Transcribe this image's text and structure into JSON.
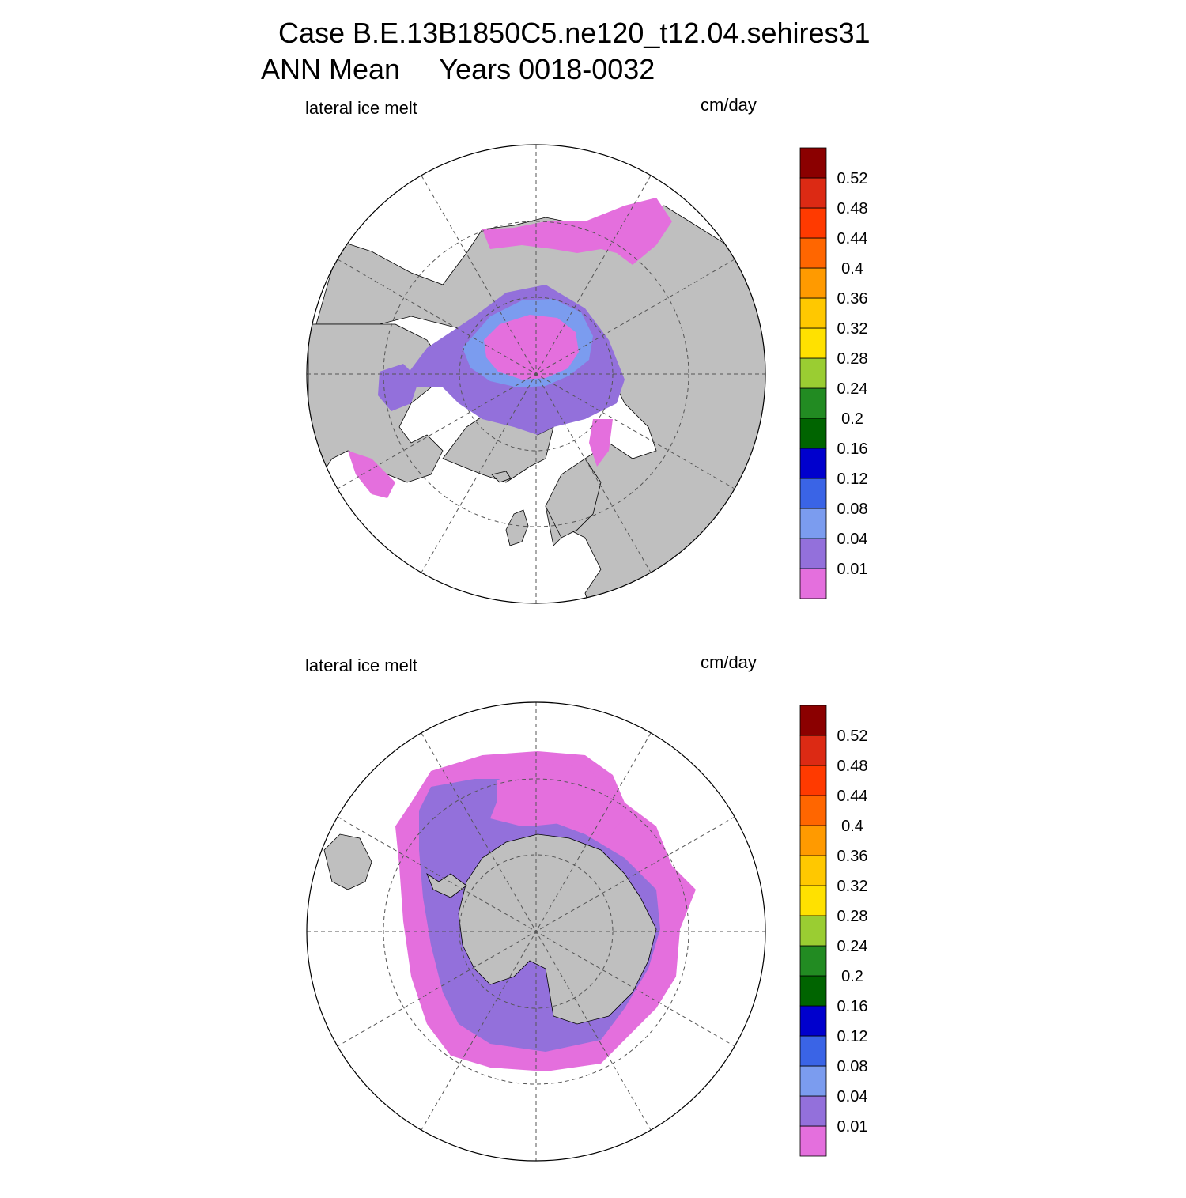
{
  "title": {
    "line1": "Case B.E.13B1850C5.ne120_t12.04.sehires31",
    "line2": "ANN Mean     Years 0018-0032"
  },
  "colors": {
    "land": "#bfbfbf",
    "ocean": "#ffffff",
    "ice_lowest": "#e46fdd",
    "ice_low": "#9370db",
    "ice_mid": "#7b9cef",
    "ice_blue": "#3a64e6"
  },
  "panels": [
    {
      "id": "north",
      "left_label": "lateral ice melt",
      "right_label": "cm/day",
      "hemisphere": "Northern Hemisphere polar stereographic",
      "colorbar": {
        "colors": [
          "#e46fdd",
          "#9370db",
          "#7b9cef",
          "#3a64e6",
          "#0000cd",
          "#006400",
          "#228b22",
          "#9acd32",
          "#ffe100",
          "#ffc800",
          "#ff9a00",
          "#ff6600",
          "#ff3a00",
          "#dc2a14",
          "#8b0000"
        ],
        "labels": [
          "0.01",
          "0.04",
          "0.08",
          "0.12",
          "0.16",
          "0.2",
          "0.24",
          "0.28",
          "0.32",
          "0.36",
          "0.4",
          "0.44",
          "0.48",
          "0.52"
        ]
      }
    },
    {
      "id": "south",
      "left_label": "lateral ice melt",
      "right_label": "cm/day",
      "hemisphere": "Southern Hemisphere polar stereographic",
      "colorbar": {
        "colors": [
          "#e46fdd",
          "#9370db",
          "#7b9cef",
          "#3a64e6",
          "#0000cd",
          "#006400",
          "#228b22",
          "#9acd32",
          "#ffe100",
          "#ffc800",
          "#ff9a00",
          "#ff6600",
          "#ff3a00",
          "#dc2a14",
          "#8b0000"
        ],
        "labels": [
          "0.01",
          "0.04",
          "0.08",
          "0.12",
          "0.16",
          "0.2",
          "0.24",
          "0.28",
          "0.32",
          "0.36",
          "0.4",
          "0.44",
          "0.48",
          "0.52"
        ]
      }
    }
  ]
}
